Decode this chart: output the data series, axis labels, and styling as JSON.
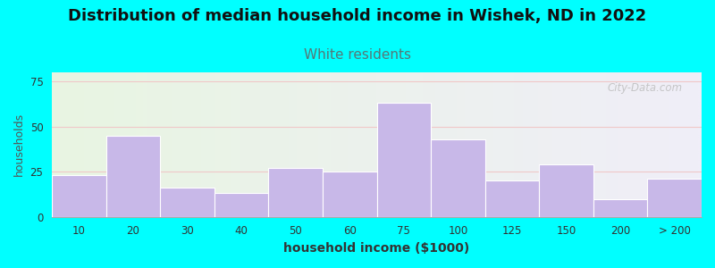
{
  "title": "Distribution of median household income in Wishek, ND in 2022",
  "subtitle": "White residents",
  "xlabel": "household income ($1000)",
  "ylabel": "households",
  "title_fontsize": 13,
  "subtitle_fontsize": 11,
  "subtitle_color": "#557777",
  "ylabel_fontsize": 9,
  "xlabel_fontsize": 10,
  "background_color": "#00FFFF",
  "plot_bg_gradient_left": "#e8f5e2",
  "plot_bg_gradient_right": "#f0eef8",
  "bar_color": "#c8b8e8",
  "bar_edgecolor": "#ffffff",
  "categories": [
    "10",
    "20",
    "30",
    "40",
    "50",
    "60",
    "75",
    "100",
    "125",
    "150",
    "200",
    "> 200"
  ],
  "values": [
    23,
    45,
    16,
    13,
    27,
    25,
    63,
    43,
    20,
    29,
    10,
    21
  ],
  "ylim": [
    0,
    80
  ],
  "yticks": [
    0,
    25,
    50,
    75
  ],
  "grid_color": "#f0c8c8",
  "watermark": "City-Data.com"
}
